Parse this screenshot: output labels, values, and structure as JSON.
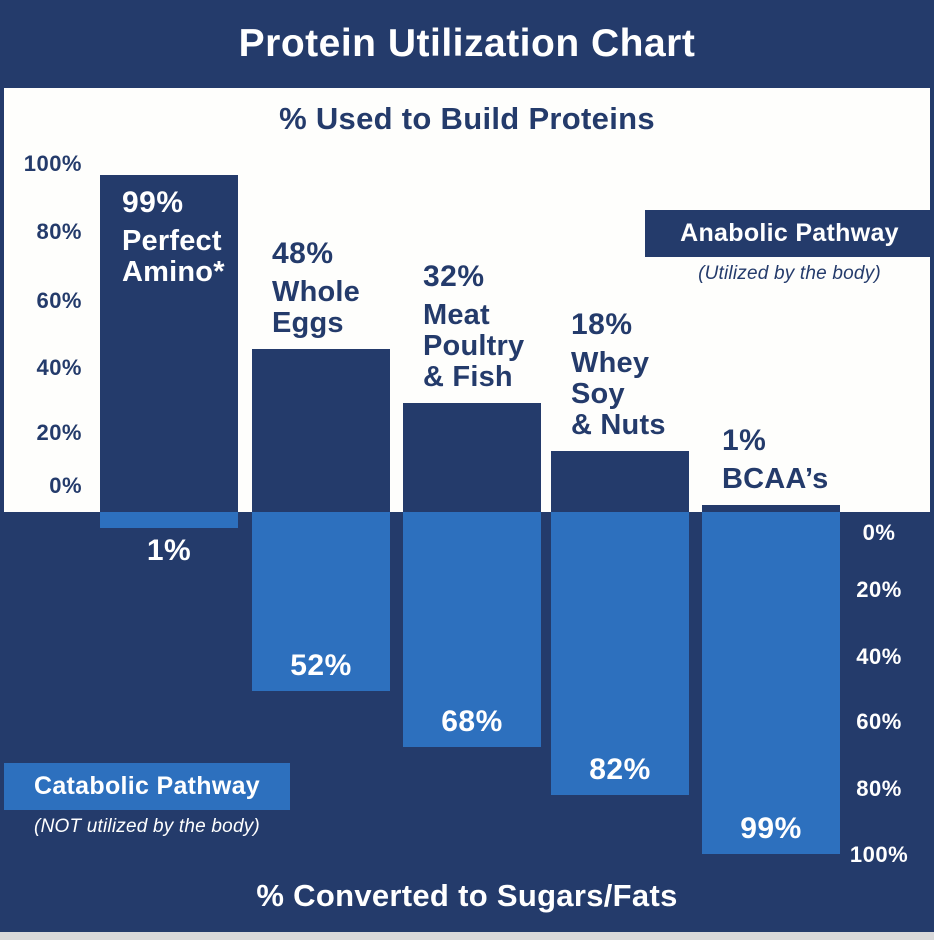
{
  "header": {
    "title": "Protein Utilization Chart"
  },
  "anabolic_section": {
    "subtitle": "% Used to Build Proteins",
    "axis_ticks": [
      "100%",
      "80%",
      "60%",
      "40%",
      "20%",
      "0%"
    ],
    "legend_label": "Anabolic Pathway",
    "legend_sub": "(Utilized by the body)"
  },
  "catabolic_section": {
    "title": "% Converted to Sugars/Fats",
    "axis_ticks": [
      "0%",
      "20%",
      "40%",
      "60%",
      "80%",
      "100%"
    ],
    "legend_label": "Catabolic Pathway",
    "legend_sub": "(NOT utilized by the body)"
  },
  "colors": {
    "navy": "#243B6B",
    "light_blue": "#2D70BE",
    "panel_white": "#FEFEFC",
    "footer_gray": "#D9D9DA",
    "text_white": "#FFFFFF"
  },
  "bars": [
    {
      "build_label": "99%",
      "name_lines": [
        "Perfect",
        "Amino*"
      ],
      "convert_label": "1%"
    },
    {
      "build_label": "48%",
      "name_lines": [
        "Whole",
        "Eggs"
      ],
      "convert_label": "52%"
    },
    {
      "build_label": "32%",
      "name_lines": [
        "Meat",
        "Poultry",
        "& Fish"
      ],
      "convert_label": "68%"
    },
    {
      "build_label": "18%",
      "name_lines": [
        "Whey",
        "Soy",
        "& Nuts"
      ],
      "convert_label": "82%"
    },
    {
      "build_label": "1%",
      "name_lines": [
        "BCAA’s"
      ],
      "convert_label": "99%"
    }
  ],
  "chart_data": {
    "type": "bar",
    "orientation": "diverging-vertical",
    "title": "Protein Utilization Chart",
    "top_axis_label": "% Used to Build Proteins",
    "bottom_axis_label": "% Converted to Sugars/Fats",
    "categories": [
      "Perfect Amino*",
      "Whole Eggs",
      "Meat Poultry & Fish",
      "Whey Soy & Nuts",
      "BCAA's"
    ],
    "series": [
      {
        "name": "Anabolic Pathway (Utilized by the body)",
        "direction": "up",
        "values": [
          99,
          48,
          32,
          18,
          1
        ]
      },
      {
        "name": "Catabolic Pathway (NOT utilized by the body)",
        "direction": "down",
        "values": [
          1,
          52,
          68,
          82,
          99
        ]
      }
    ],
    "value_suffix": "%",
    "ylim_top": [
      0,
      100
    ],
    "ylim_bottom": [
      0,
      100
    ],
    "grid": false,
    "legend_position": {
      "anabolic": "top-right",
      "catabolic": "bottom-left"
    }
  }
}
